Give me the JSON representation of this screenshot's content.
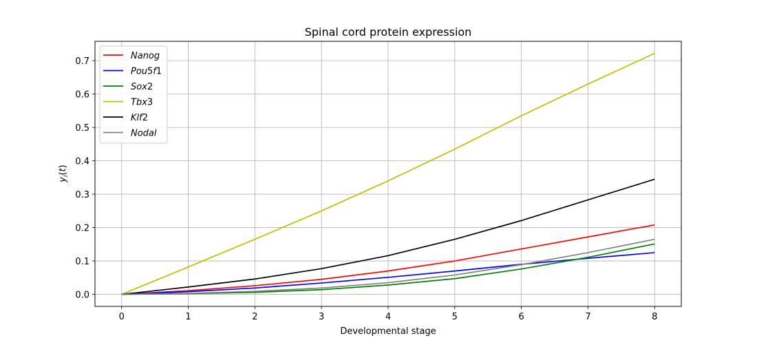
{
  "chart_data": {
    "type": "line",
    "title": "Spinal cord protein expression",
    "xlabel": "Developmental stage",
    "ylabel": "y_i(t)",
    "xlim": [
      -0.4,
      8.4
    ],
    "ylim": [
      -0.036,
      0.758
    ],
    "x_ticks": [
      0,
      1,
      2,
      3,
      4,
      5,
      6,
      7,
      8
    ],
    "x_tick_labels": [
      "0",
      "1",
      "2",
      "3",
      "4",
      "5",
      "6",
      "7",
      "8"
    ],
    "y_ticks": [
      0.0,
      0.1,
      0.2,
      0.3,
      0.4,
      0.5,
      0.6,
      0.7
    ],
    "y_tick_labels": [
      "0.0",
      "0.1",
      "0.2",
      "0.3",
      "0.4",
      "0.5",
      "0.6",
      "0.7"
    ],
    "grid": true,
    "legend_position": "top-left",
    "x": [
      0,
      1,
      2,
      3,
      4,
      5,
      6,
      7,
      8
    ],
    "series": [
      {
        "name": "Nanog",
        "color": "#ff0000",
        "values": [
          0.0,
          0.011,
          0.026,
          0.045,
          0.07,
          0.1,
          0.136,
          0.172,
          0.208
        ]
      },
      {
        "name": "Pou5f1",
        "color": "#0000ff",
        "values": [
          0.0,
          0.008,
          0.019,
          0.034,
          0.051,
          0.07,
          0.09,
          0.108,
          0.125
        ]
      },
      {
        "name": "Sox2",
        "color": "#008000",
        "values": [
          0.0,
          0.002,
          0.006,
          0.014,
          0.028,
          0.047,
          0.076,
          0.111,
          0.151
        ]
      },
      {
        "name": "Tbx3",
        "color": "#bfbf00",
        "values": [
          0.0,
          0.082,
          0.165,
          0.25,
          0.34,
          0.435,
          0.535,
          0.63,
          0.722
        ]
      },
      {
        "name": "Klf2",
        "color": "#000000",
        "values": [
          0.0,
          0.022,
          0.046,
          0.077,
          0.116,
          0.165,
          0.221,
          0.283,
          0.345
        ]
      },
      {
        "name": "Nodal",
        "color": "#808080",
        "values": [
          0.0,
          0.003,
          0.009,
          0.019,
          0.035,
          0.058,
          0.089,
          0.125,
          0.165
        ]
      }
    ]
  }
}
